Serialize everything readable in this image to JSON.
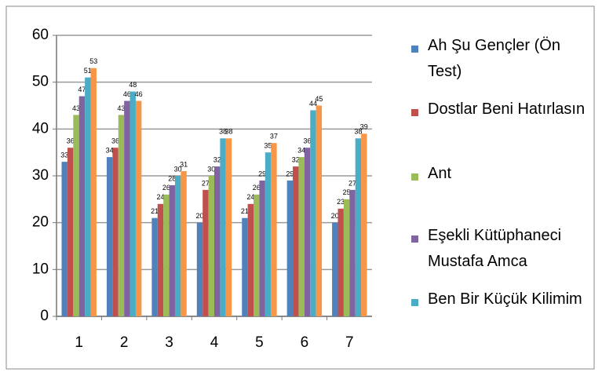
{
  "chart_data": {
    "type": "bar",
    "categories": [
      "1",
      "2",
      "3",
      "4",
      "5",
      "6",
      "7"
    ],
    "series": [
      {
        "name": "Ah Şu Gençler (Ön Test)",
        "color": "#4f81bd",
        "values": [
          33,
          34,
          21,
          20,
          21,
          29,
          20
        ]
      },
      {
        "name": "Dostlar Beni Hatırlasın",
        "color": "#c0504d",
        "values": [
          36,
          36,
          24,
          27,
          24,
          32,
          23
        ]
      },
      {
        "name": "Ant",
        "color": "#9bbb59",
        "values": [
          43,
          43,
          26,
          30,
          26,
          34,
          25
        ]
      },
      {
        "name": "Eşekli Kütüphaneci Mustafa Amca",
        "color": "#8064a2",
        "values": [
          47,
          46,
          28,
          32,
          29,
          36,
          27
        ]
      },
      {
        "name": "Ben Bir Küçük Kilimim",
        "color": "#4bacc6",
        "values": [
          51,
          48,
          30,
          38,
          35,
          44,
          38
        ]
      },
      {
        "color": "#f79646",
        "values": [
          53,
          46,
          31,
          38,
          37,
          45,
          39
        ]
      }
    ],
    "ylim": [
      0,
      60
    ],
    "yticks": [
      0,
      10,
      20,
      30,
      40,
      50,
      60
    ],
    "grid": true
  }
}
